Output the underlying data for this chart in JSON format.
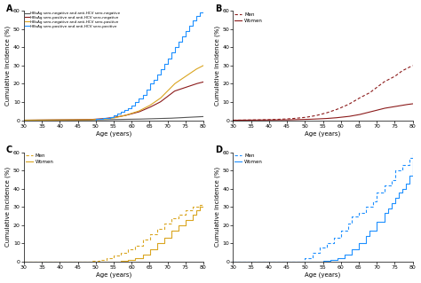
{
  "panel_labels": [
    "A",
    "B",
    "C",
    "D"
  ],
  "xlim": [
    30,
    80
  ],
  "ylim": [
    0,
    60
  ],
  "xticks": [
    30,
    35,
    40,
    45,
    50,
    55,
    60,
    65,
    70,
    75,
    80
  ],
  "yticks": [
    0,
    10,
    20,
    30,
    40,
    50,
    60
  ],
  "xlabel": "Age (years)",
  "ylabel": "Cumulative Incidence (%)",
  "colors": {
    "A_neg_neg": "#555555",
    "A_pos_neg": "#8B1A1A",
    "A_neg_pos": "#DAA520",
    "A_pos_pos": "#1E90FF",
    "B_men": "#8B1A1A",
    "B_women": "#8B1A1A",
    "C_men": "#DAA520",
    "C_women": "#DAA520",
    "D_men": "#1E90FF",
    "D_women": "#1E90FF"
  },
  "legend_A": [
    "HBsAg sero-negative and anti-HCV sero-negative",
    "HBsAg sero-positive and anti-HCV sero-negative",
    "HBsAg sero-negative and anti-HCV sero-positive",
    "HBsAg sero-positive and anti-HCV sero-positive"
  ],
  "legend_BCD": [
    "Men",
    "Women"
  ],
  "background_color": "#ffffff"
}
